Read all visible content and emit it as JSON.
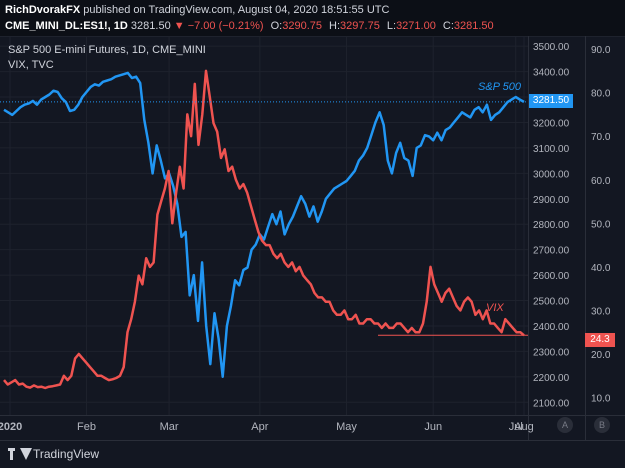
{
  "header": {
    "author": "RichDvorakFX",
    "published_text": " published on TradingView.com, August 04, 2020 18:51:55 UTC",
    "symbol": "CME_MINI_DL:ES1!, 1D",
    "last": "3281.50",
    "change": "▼ −7.00 (−0.21%)",
    "o_label": "O:",
    "o_val": "3290.75",
    "h_label": "H:",
    "h_val": "3297.75",
    "l_label": "L:",
    "l_val": "3271.00",
    "c_label": "C:",
    "c_val": "3281.50"
  },
  "legend": {
    "series1": "S&P 500 E-mini Futures, 1D, CME_MINI",
    "series2": "VIX, TVC"
  },
  "annotations": {
    "spx": "S&P 500",
    "vix": "VIX"
  },
  "last_values": {
    "spx": "3281.50",
    "vix": "24.3"
  },
  "footer": {
    "brand": "TradingView",
    "btn_a": "A",
    "btn_b": "B"
  },
  "colors": {
    "spx": "#2196f3",
    "vix": "#ef5350",
    "background": "#131722"
  },
  "chart_data": {
    "type": "line",
    "x_ticks": [
      "2020",
      "Feb",
      "Mar",
      "Apr",
      "May",
      "Jun",
      "Jul",
      "Aug"
    ],
    "axes": {
      "left": {
        "ticks": [
          3500,
          3400,
          3300,
          3200,
          3100,
          3000,
          2900,
          2800,
          2700,
          2600,
          2500,
          2400,
          2300,
          2200,
          2100
        ],
        "ylim": [
          2050,
          3540
        ]
      },
      "right": {
        "ticks": [
          90,
          80,
          70,
          60,
          50,
          40,
          30,
          20,
          10
        ],
        "ylim": [
          6,
          93
        ]
      }
    },
    "series": [
      {
        "name": "S&P 500",
        "axis": "left",
        "color": "#2196f3",
        "values": [
          3250,
          3240,
          3230,
          3245,
          3260,
          3270,
          3275,
          3285,
          3270,
          3290,
          3300,
          3310,
          3325,
          3320,
          3295,
          3280,
          3245,
          3250,
          3270,
          3300,
          3320,
          3340,
          3350,
          3345,
          3360,
          3365,
          3370,
          3380,
          3385,
          3390,
          3395,
          3375,
          3380,
          3355,
          3210,
          3120,
          3000,
          3110,
          3050,
          2980,
          3000,
          2950,
          2880,
          2750,
          2770,
          2520,
          2600,
          2420,
          2650,
          2400,
          2250,
          2450,
          2350,
          2200,
          2400,
          2480,
          2580,
          2560,
          2620,
          2630,
          2700,
          2720,
          2760,
          2740,
          2790,
          2840,
          2800,
          2850,
          2760,
          2800,
          2830,
          2870,
          2910,
          2880,
          2830,
          2870,
          2810,
          2850,
          2900,
          2920,
          2940,
          2950,
          2960,
          2970,
          2990,
          3010,
          3050,
          3070,
          3100,
          3150,
          3200,
          3240,
          3190,
          3050,
          3000,
          3080,
          3120,
          3060,
          3050,
          2990,
          3100,
          3110,
          3150,
          3145,
          3130,
          3160,
          3130,
          3170,
          3180,
          3200,
          3220,
          3240,
          3230,
          3220,
          3250,
          3260,
          3240,
          3270,
          3210,
          3230,
          3240,
          3260,
          3280,
          3290,
          3300,
          3290,
          3281
        ]
      },
      {
        "name": "VIX",
        "axis": "right",
        "color": "#ef5350",
        "values": [
          14,
          13,
          13.5,
          14,
          13,
          13.2,
          12.5,
          12.3,
          12.8,
          12.4,
          12.5,
          12.2,
          12.5,
          12.6,
          12.8,
          13,
          15,
          14,
          15,
          19,
          20,
          19,
          18,
          17,
          16,
          15,
          15,
          14.5,
          14,
          14.2,
          14.5,
          15,
          17,
          25,
          28,
          32,
          38,
          36,
          42,
          40,
          41,
          52,
          55,
          58,
          62,
          50,
          57,
          63,
          58,
          75,
          70,
          82,
          68,
          75,
          85,
          79,
          73,
          71,
          65,
          67,
          62,
          63,
          60,
          58,
          59,
          57,
          54,
          51,
          48,
          46,
          45,
          45,
          43,
          42,
          43,
          41,
          40,
          41,
          39,
          40,
          38,
          37,
          36,
          34,
          33,
          33,
          32,
          32,
          30,
          29,
          29,
          30,
          28,
          28,
          29,
          27,
          27,
          28,
          28,
          27,
          27,
          26,
          27,
          26,
          26,
          27,
          27,
          26,
          25,
          26,
          25,
          25,
          27,
          32,
          40,
          36,
          34,
          32,
          34,
          35,
          33,
          31,
          30,
          32,
          33,
          32,
          29,
          30,
          28,
          30,
          27,
          27,
          26,
          25,
          28,
          27,
          26,
          25,
          25,
          24.3
        ]
      }
    ]
  }
}
